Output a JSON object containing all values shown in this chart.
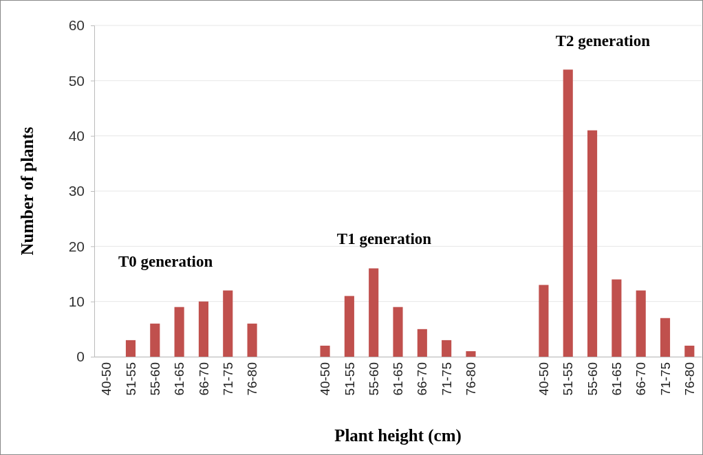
{
  "chart_data": {
    "type": "bar",
    "xlabel": "Plant height (cm)",
    "ylabel": "Number of plants",
    "categories": [
      "40-50",
      "51-55",
      "55-60",
      "61-65",
      "66-70",
      "71-75",
      "76-80",
      null,
      null,
      "40-50",
      "51-55",
      "55-60",
      "61-65",
      "66-70",
      "71-75",
      "76-80",
      null,
      null,
      "40-50",
      "51-55",
      "55-60",
      "61-65",
      "66-70",
      "71-75",
      "76-80"
    ],
    "values": [
      0,
      3,
      6,
      9,
      10,
      12,
      6,
      null,
      null,
      2,
      11,
      16,
      9,
      5,
      3,
      1,
      null,
      null,
      13,
      52,
      41,
      14,
      12,
      7,
      2
    ],
    "color": "#c0504d",
    "ylim": [
      0,
      60
    ],
    "yticks": [
      0,
      10,
      20,
      30,
      40,
      50,
      60
    ],
    "grid": "y",
    "annotations": [
      "T0 generation",
      "T1 generation",
      "T2 generation"
    ]
  }
}
